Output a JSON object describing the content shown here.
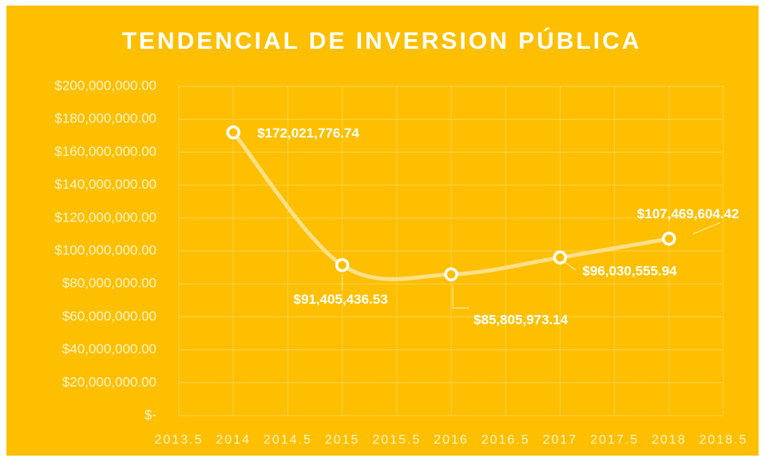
{
  "chart_data": {
    "type": "line",
    "title": "TENDENCIAL DE INVERSION PÚBLICA",
    "x": [
      2014,
      2015,
      2016,
      2017,
      2018
    ],
    "values": [
      172021776.74,
      91405436.53,
      85805973.14,
      96030555.94,
      107469604.42
    ],
    "value_labels": [
      "$172,021,776.74",
      "$91,405,436.53",
      "$85,805,973.14",
      "$96,030,555.94",
      "$107,469,604.42"
    ],
    "color": "#ffe08a",
    "smooth": true,
    "grid": true,
    "xlim": [
      2013.5,
      2018.5
    ],
    "xticks": [
      2013.5,
      2014,
      2014.5,
      2015,
      2015.5,
      2016,
      2016.5,
      2017,
      2017.5,
      2018,
      2018.5
    ],
    "ylim": [
      0,
      200000000
    ],
    "yticks": [
      {
        "value": 0,
        "label": "$-"
      },
      {
        "value": 20000000,
        "label": "$20,000,000.00"
      },
      {
        "value": 40000000,
        "label": "$40,000,000.00"
      },
      {
        "value": 60000000,
        "label": "$60,000,000.00"
      },
      {
        "value": 80000000,
        "label": "$80,000,000.00"
      },
      {
        "value": 100000000,
        "label": "$100,000,000.00"
      },
      {
        "value": 120000000,
        "label": "$120,000,000.00"
      },
      {
        "value": 140000000,
        "label": "$140,000,000.00"
      },
      {
        "value": 160000000,
        "label": "$160,000,000.00"
      },
      {
        "value": 180000000,
        "label": "$180,000,000.00"
      },
      {
        "value": 200000000,
        "label": "$200,000,000.00"
      }
    ]
  }
}
